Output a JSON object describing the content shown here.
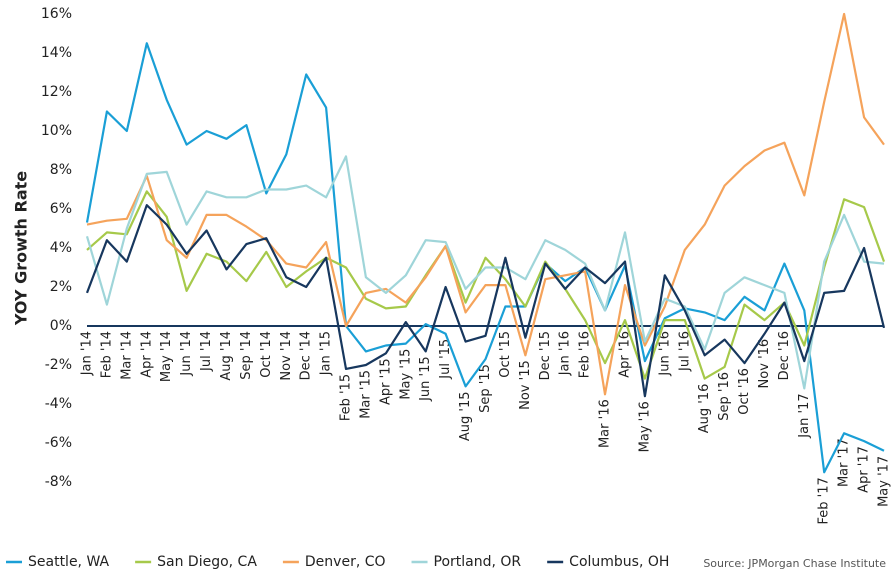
{
  "chart_data": {
    "type": "line",
    "y_label": "YOY Growth Rate",
    "source": "Source:  JPMorgan Chase Institute",
    "categories": [
      "Jan '14",
      "Feb '14",
      "Mar '14",
      "Apr '14",
      "May '14",
      "Jun '14",
      "Jul '14",
      "Aug '14",
      "Sep '14",
      "Oct '14",
      "Nov '14",
      "Dec '14",
      "Jan '15",
      "Feb '15",
      "Mar '15",
      "Apr '15",
      "May '15",
      "Jun '15",
      "Jul '15",
      "Aug '15",
      "Sep '15",
      "Oct '15",
      "Nov '15",
      "Dec '15",
      "Jan '16",
      "Feb '16",
      "Mar '16",
      "Apr '16",
      "May '16",
      "Jun '16",
      "Jul '16",
      "Aug '16",
      "Sep '16",
      "Oct '16",
      "Nov '16",
      "Dec '16",
      "Jan '17",
      "Feb '17",
      "Mar '17",
      "Apr '17",
      "May '17"
    ],
    "series": [
      {
        "name": "Seattle, WA",
        "color": "#1a9fd6",
        "values": [
          5.3,
          11.0,
          10.0,
          14.5,
          11.6,
          9.3,
          10.0,
          9.6,
          10.3,
          6.8,
          8.8,
          12.9,
          11.2,
          0.0,
          -1.3,
          -1.0,
          -0.9,
          0.1,
          -0.4,
          -3.1,
          -1.7,
          1.0,
          1.0,
          3.2,
          2.3,
          3.0,
          0.8,
          3.1,
          -1.8,
          0.4,
          0.9,
          0.7,
          0.3,
          1.5,
          0.8,
          3.2,
          0.8,
          -7.5,
          -5.5,
          -5.9,
          -6.4
        ]
      },
      {
        "name": "San Diego, CA",
        "color": "#a6c94a",
        "values": [
          3.9,
          4.8,
          4.7,
          6.9,
          5.6,
          1.8,
          3.7,
          3.3,
          2.3,
          3.8,
          2.0,
          2.8,
          3.5,
          3.0,
          1.4,
          0.9,
          1.0,
          2.6,
          4.1,
          1.2,
          3.5,
          2.4,
          1.0,
          3.3,
          1.9,
          0.3,
          -1.9,
          0.3,
          -2.7,
          0.3,
          0.3,
          -2.7,
          -2.1,
          1.1,
          0.3,
          1.2,
          -1.0,
          3.0,
          6.5,
          6.1,
          3.3
        ]
      },
      {
        "name": "Denver, CO",
        "color": "#f5a35b",
        "values": [
          5.2,
          5.4,
          5.5,
          7.7,
          4.4,
          3.5,
          5.7,
          5.7,
          5.1,
          4.4,
          3.2,
          3.0,
          4.3,
          0.0,
          1.7,
          1.9,
          1.2,
          2.5,
          4.1,
          0.7,
          2.1,
          2.1,
          -1.5,
          2.4,
          2.6,
          2.8,
          -3.5,
          2.1,
          -1.0,
          1.0,
          3.9,
          5.2,
          7.2,
          8.2,
          9.0,
          9.4,
          6.7,
          11.5,
          16.0,
          10.7,
          9.3
        ]
      },
      {
        "name": "Portland, OR",
        "color": "#9fd5d9",
        "values": [
          4.6,
          1.1,
          5.0,
          7.8,
          7.9,
          5.2,
          6.9,
          6.6,
          6.6,
          7.0,
          7.0,
          7.2,
          6.6,
          8.7,
          2.5,
          1.7,
          2.6,
          4.4,
          4.3,
          1.9,
          3.0,
          3.0,
          2.4,
          4.4,
          3.9,
          3.2,
          0.8,
          4.8,
          -0.8,
          1.4,
          1.0,
          -1.2,
          1.7,
          2.5,
          2.1,
          1.7,
          -3.2,
          3.3,
          5.7,
          3.3,
          3.2
        ]
      },
      {
        "name": "Columbus, OH",
        "color": "#17375e",
        "values": [
          1.7,
          4.4,
          3.3,
          6.2,
          5.2,
          3.7,
          4.9,
          2.9,
          4.2,
          4.5,
          2.5,
          2.0,
          3.5,
          -2.2,
          -2.0,
          -1.4,
          0.2,
          -1.3,
          2.0,
          -0.8,
          -0.5,
          3.5,
          -0.6,
          3.2,
          1.9,
          3.0,
          2.2,
          3.3,
          -3.6,
          2.6,
          0.8,
          -1.5,
          -0.7,
          -1.9,
          -0.4,
          1.2,
          -1.8,
          1.7,
          1.8,
          4.0,
          -0.1
        ]
      }
    ],
    "ylim": [
      -8,
      16
    ],
    "yticks": [
      {
        "value": -8,
        "label": "-8%"
      },
      {
        "value": -6,
        "label": "-6%"
      },
      {
        "value": -4,
        "label": "-4%"
      },
      {
        "value": -2,
        "label": "-2%"
      },
      {
        "value": 0,
        "label": "0%"
      },
      {
        "value": 2,
        "label": "2%"
      },
      {
        "value": 4,
        "label": "4%"
      },
      {
        "value": 6,
        "label": "6%"
      },
      {
        "value": 8,
        "label": "8%"
      },
      {
        "value": 10,
        "label": "10%"
      },
      {
        "value": 12,
        "label": "12%"
      },
      {
        "value": 14,
        "label": "14%"
      },
      {
        "value": 16,
        "label": "16%"
      }
    ],
    "grid": false,
    "legend": "bottom"
  }
}
